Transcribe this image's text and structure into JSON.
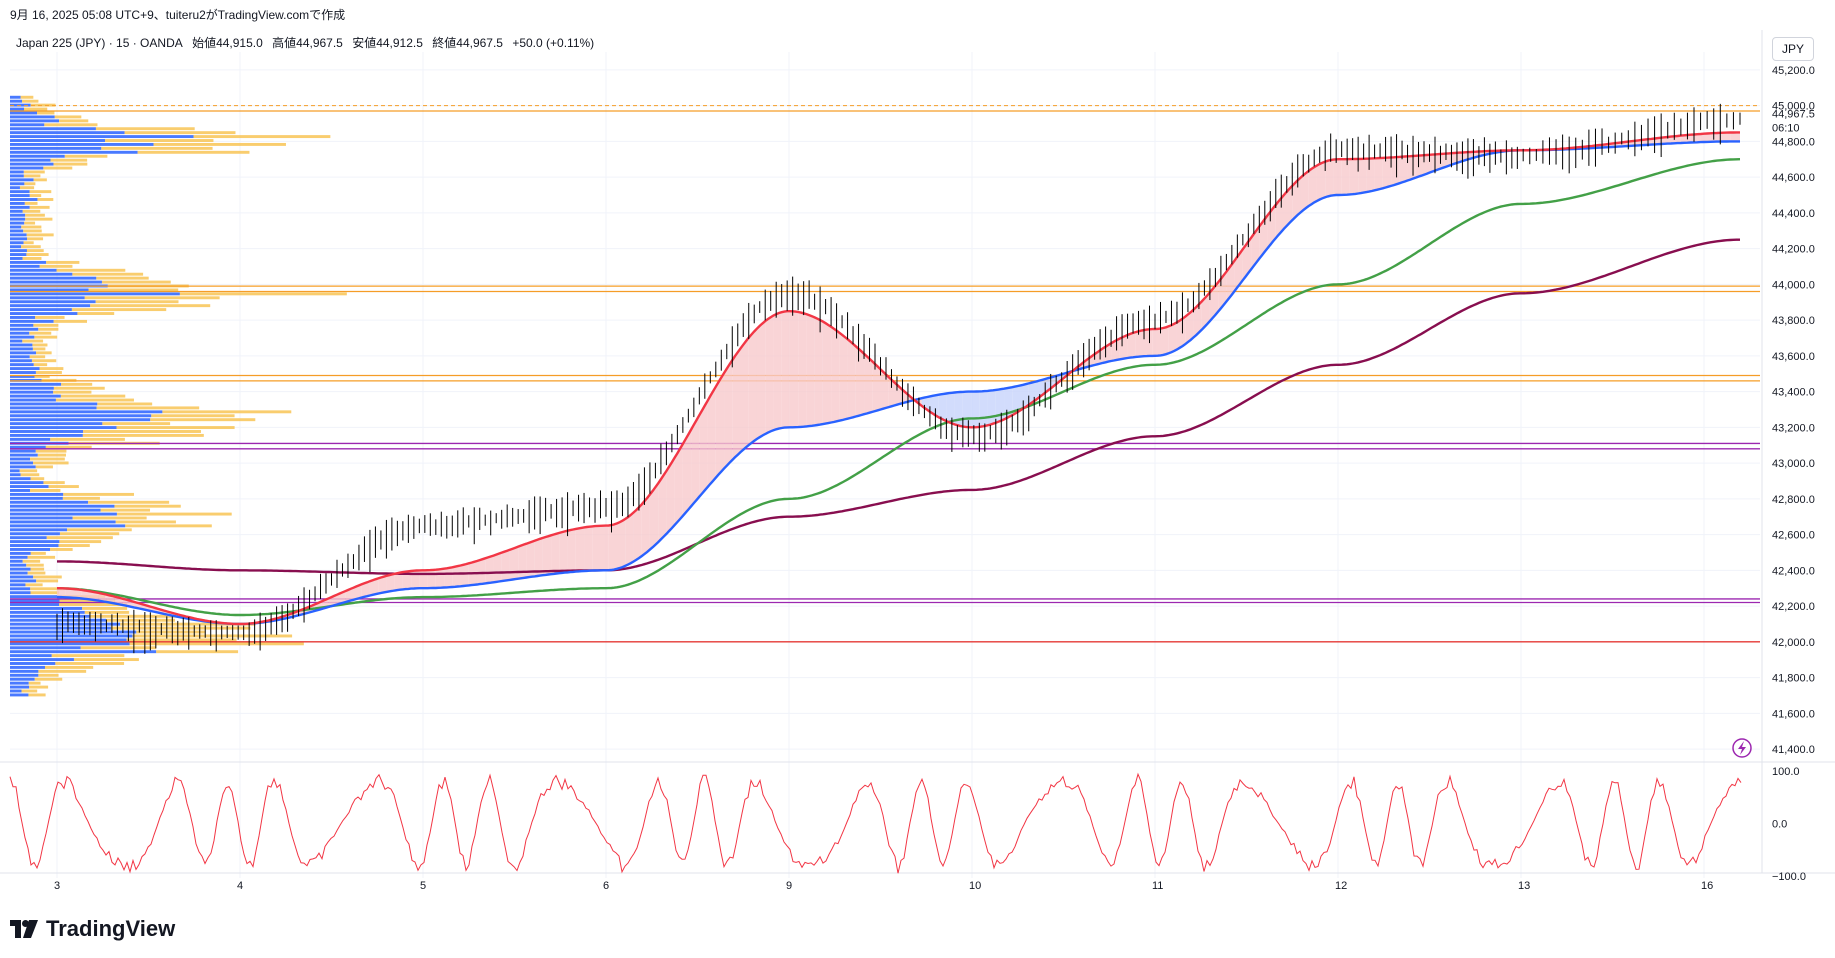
{
  "header": {
    "created_by": "9月 16, 2025 05:08 UTC+9、tuiteru2がTradingView.comで作成"
  },
  "symbol_bar": {
    "symbol": "Japan 225 (JPY) · 15 · OANDA",
    "open": "始値44,915.0",
    "high": "高値44,967.5",
    "low": "安値44,912.5",
    "close": "終値44,967.5",
    "change": "+50.0 (+0.11%)"
  },
  "currency": "JPY",
  "brand": "TradingView",
  "last_price_label": "44,967.5",
  "countdown_label": "06:10",
  "price_axis": [
    "45,200.0",
    "45,000.0",
    "44,800.0",
    "44,600.0",
    "44,400.0",
    "44,200.0",
    "44,000.0",
    "43,800.0",
    "43,600.0",
    "43,400.0",
    "43,200.0",
    "43,000.0",
    "42,800.0",
    "42,600.0",
    "42,400.0",
    "42,200.0",
    "42,000.0",
    "41,800.0",
    "41,600.0",
    "41,400.0"
  ],
  "osc_axis": [
    "100.0",
    "0.0",
    "−100.0"
  ],
  "time_axis": [
    "3",
    "4",
    "5",
    "6",
    "9",
    "10",
    "11",
    "12",
    "13",
    "16"
  ],
  "colors": {
    "up": "#000000",
    "fast_ma": "#f23645",
    "mid_ma": "#2962ff",
    "slow_ma": "#43a047",
    "long_ma": "#880e4f",
    "vp_up": "#2962ff",
    "vp_down": "#f7c04a",
    "fill_bull": "#f8c9cc",
    "fill_bear": "#c7d3fb",
    "level_orange": "#f59d27",
    "level_purple": "#9c27b0",
    "level_red": "#e53935",
    "oscillator": "#f23645"
  },
  "chart_data": {
    "type": "line",
    "title": "Japan 225 (JPY) · 15 · OANDA",
    "ylim": [
      41350,
      45300
    ],
    "x": [
      "3",
      "4",
      "5",
      "6",
      "9",
      "10",
      "11",
      "12",
      "13",
      "16"
    ],
    "series": [
      {
        "values": [
          42100,
          42050,
          42650,
          42750,
          43950,
          43150,
          43800,
          44750,
          44720,
          44920
        ]
      },
      {
        "values": [
          42300,
          42100,
          42400,
          42650,
          43850,
          43200,
          43750,
          44700,
          44750,
          44850
        ]
      },
      {
        "values": [
          42250,
          42100,
          42300,
          42400,
          43200,
          43400,
          43600,
          44500,
          44750,
          44800
        ]
      },
      {
        "values": [
          42300,
          42150,
          42250,
          42300,
          42800,
          43250,
          43550,
          44000,
          44450,
          44700
        ]
      },
      {
        "values": [
          42450,
          42400,
          42380,
          42400,
          42700,
          42850,
          43150,
          43550,
          43950,
          44250
        ]
      }
    ],
    "levels": [
      {
        "price": 44970
      },
      {
        "price": 43990
      },
      {
        "price": 43960
      },
      {
        "price": 43490
      },
      {
        "price": 43460
      },
      {
        "price": 43110
      },
      {
        "price": 43080
      },
      {
        "price": 42240
      },
      {
        "price": 42220
      },
      {
        "price": 42000
      }
    ],
    "oscillator_range": [
      -100,
      100
    ]
  }
}
